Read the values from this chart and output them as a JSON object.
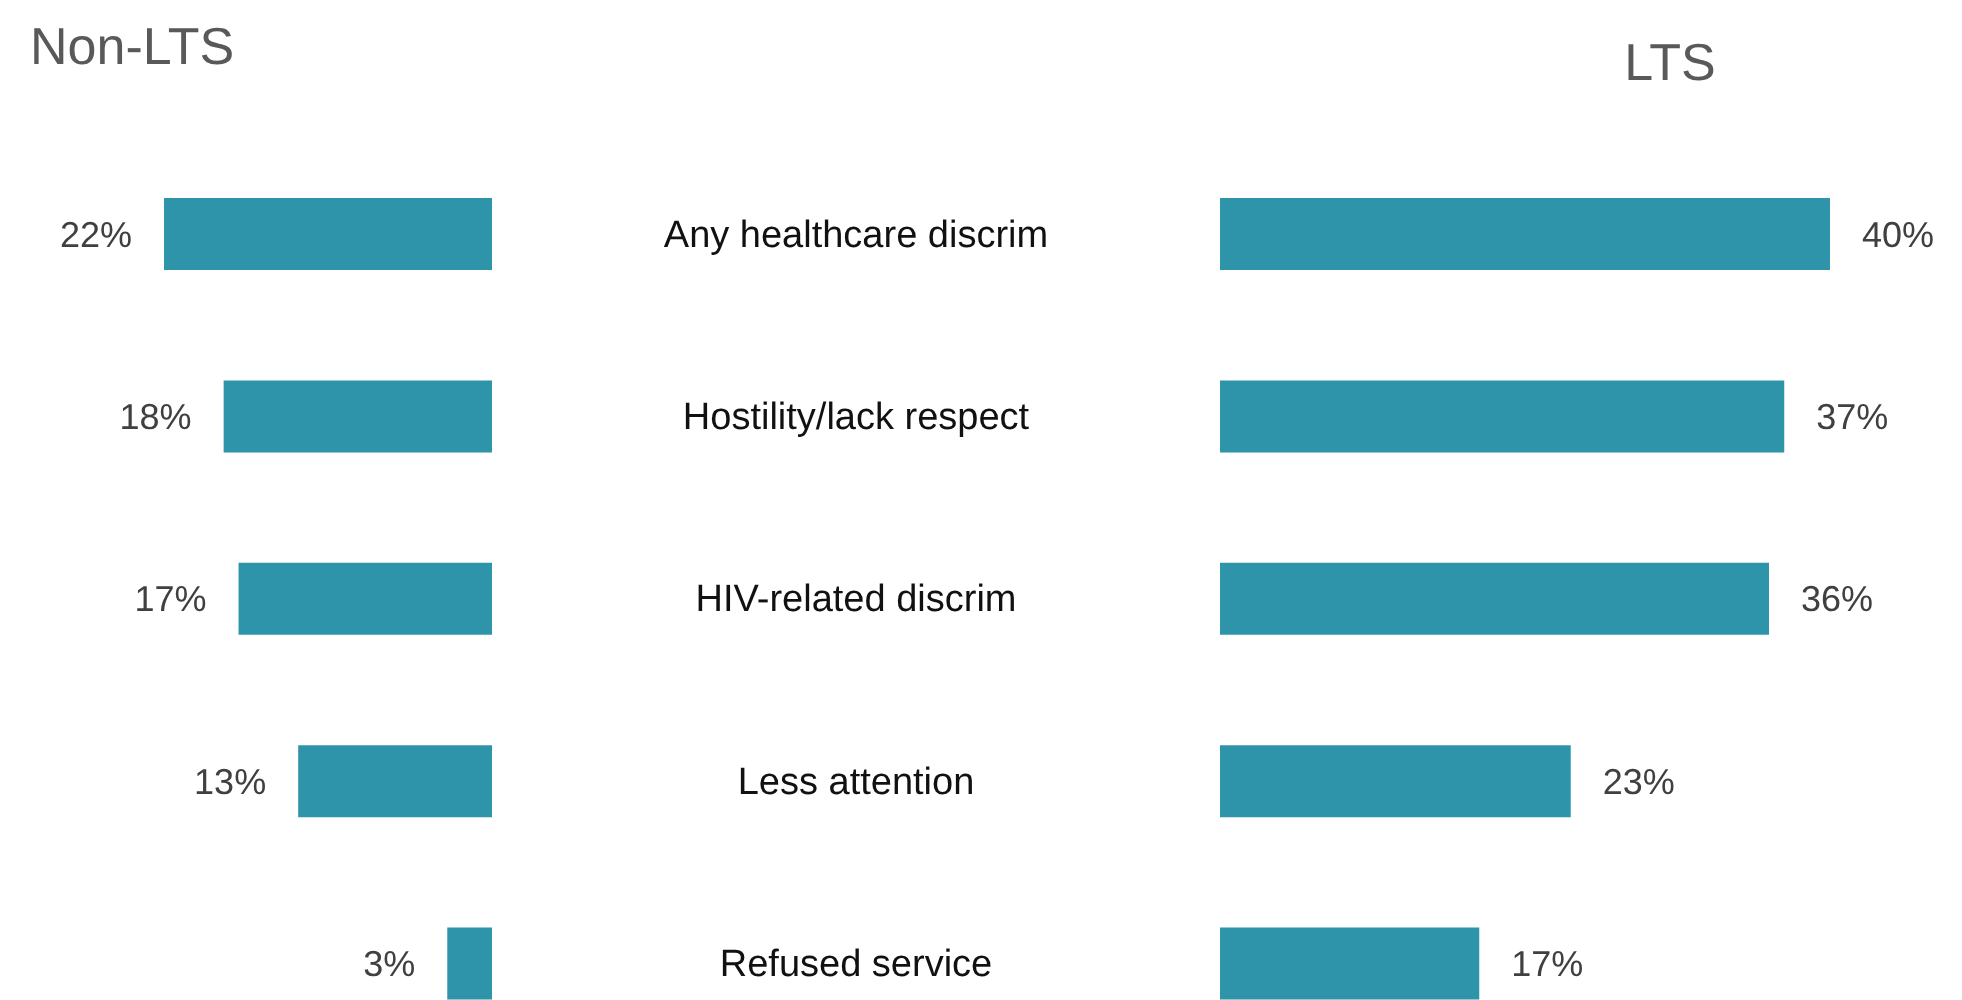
{
  "chart_data": [
    {
      "type": "bar",
      "orientation": "horizontal",
      "title": "Non-LTS",
      "categories": [
        "Any healthcare discrim",
        "Hostility/lack respect",
        "HIV-related discrim",
        "Less attention",
        "Refused service"
      ],
      "values": [
        22,
        18,
        17,
        13,
        3
      ],
      "value_labels": [
        "22%",
        "18%",
        "17%",
        "13%",
        "3%"
      ],
      "color": "#2e94a9",
      "tick_labels": "y"
    },
    {
      "type": "bar",
      "orientation": "horizontal",
      "title": "LTS",
      "categories": [
        null,
        null,
        null,
        null,
        null
      ],
      "values": [
        40,
        37,
        36,
        23,
        17
      ],
      "value_labels": [
        "40%",
        "37%",
        "36%",
        "23%",
        "17%"
      ],
      "color": "#2e94a9",
      "tick_labels": false
    }
  ]
}
